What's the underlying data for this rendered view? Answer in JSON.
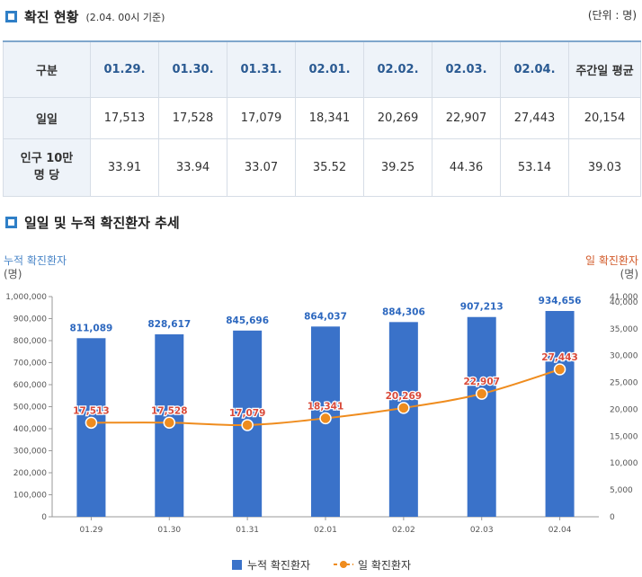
{
  "section1": {
    "title": "확진 현황",
    "subtitle": "(2.04. 00시 기준)",
    "unit": "(단위 : 명)"
  },
  "table": {
    "header_label": "구분",
    "dates": [
      "01.29.",
      "01.30.",
      "01.31.",
      "02.01.",
      "02.02.",
      "02.03.",
      "02.04."
    ],
    "weekly_avg_label": "주간일 평균",
    "rows": [
      {
        "label": "일일",
        "values": [
          "17,513",
          "17,528",
          "17,079",
          "18,341",
          "20,269",
          "22,907",
          "27,443"
        ],
        "avg": "20,154"
      },
      {
        "label": "인구 10만 명 당",
        "values": [
          "33.91",
          "33.94",
          "33.07",
          "35.52",
          "39.25",
          "44.36",
          "53.14"
        ],
        "avg": "39.03"
      }
    ]
  },
  "section2": {
    "title": "일일 및 누적 확진환자 추세"
  },
  "chart_data": {
    "type": "bar",
    "categories": [
      "01.29",
      "01.30",
      "01.31",
      "02.01",
      "02.02",
      "02.03",
      "02.04"
    ],
    "series": [
      {
        "name": "누적 확진환자",
        "type": "bar",
        "axis": "left",
        "values": [
          811089,
          828617,
          845696,
          864037,
          884306,
          907213,
          934656
        ],
        "labels": [
          "811,089",
          "828,617",
          "845,696",
          "864,037",
          "884,306",
          "907,213",
          "934,656"
        ]
      },
      {
        "name": "일 확진환자",
        "type": "line",
        "axis": "right",
        "values": [
          17513,
          17528,
          17079,
          18341,
          20269,
          22907,
          27443
        ],
        "labels": [
          "17,513",
          "17,528",
          "17,079",
          "18,341",
          "20,269",
          "22,907",
          "27,443"
        ]
      }
    ],
    "y_left": {
      "title": "누적 확진환자",
      "unit": "(명)",
      "ylim": [
        0,
        1000000
      ],
      "ticks": [
        "0",
        "100,000",
        "200,000",
        "300,000",
        "400,000",
        "500,000",
        "600,000",
        "700,000",
        "800,000",
        "900,000",
        "1,000,000"
      ]
    },
    "y_right": {
      "title": "일 확진환자",
      "unit": "(명)",
      "ylim": [
        0,
        41000
      ],
      "ticks": [
        "0",
        "5,000",
        "10,000",
        "15,000",
        "20,000",
        "25,000",
        "30,000",
        "35,000",
        "40,000",
        "41,000"
      ]
    },
    "colors": {
      "bar": "#3a72c9",
      "line": "#ef8c1e",
      "bar_label": "#2d68bf",
      "line_label": "#d94a3a"
    },
    "legend": "bottom",
    "grid": false
  }
}
